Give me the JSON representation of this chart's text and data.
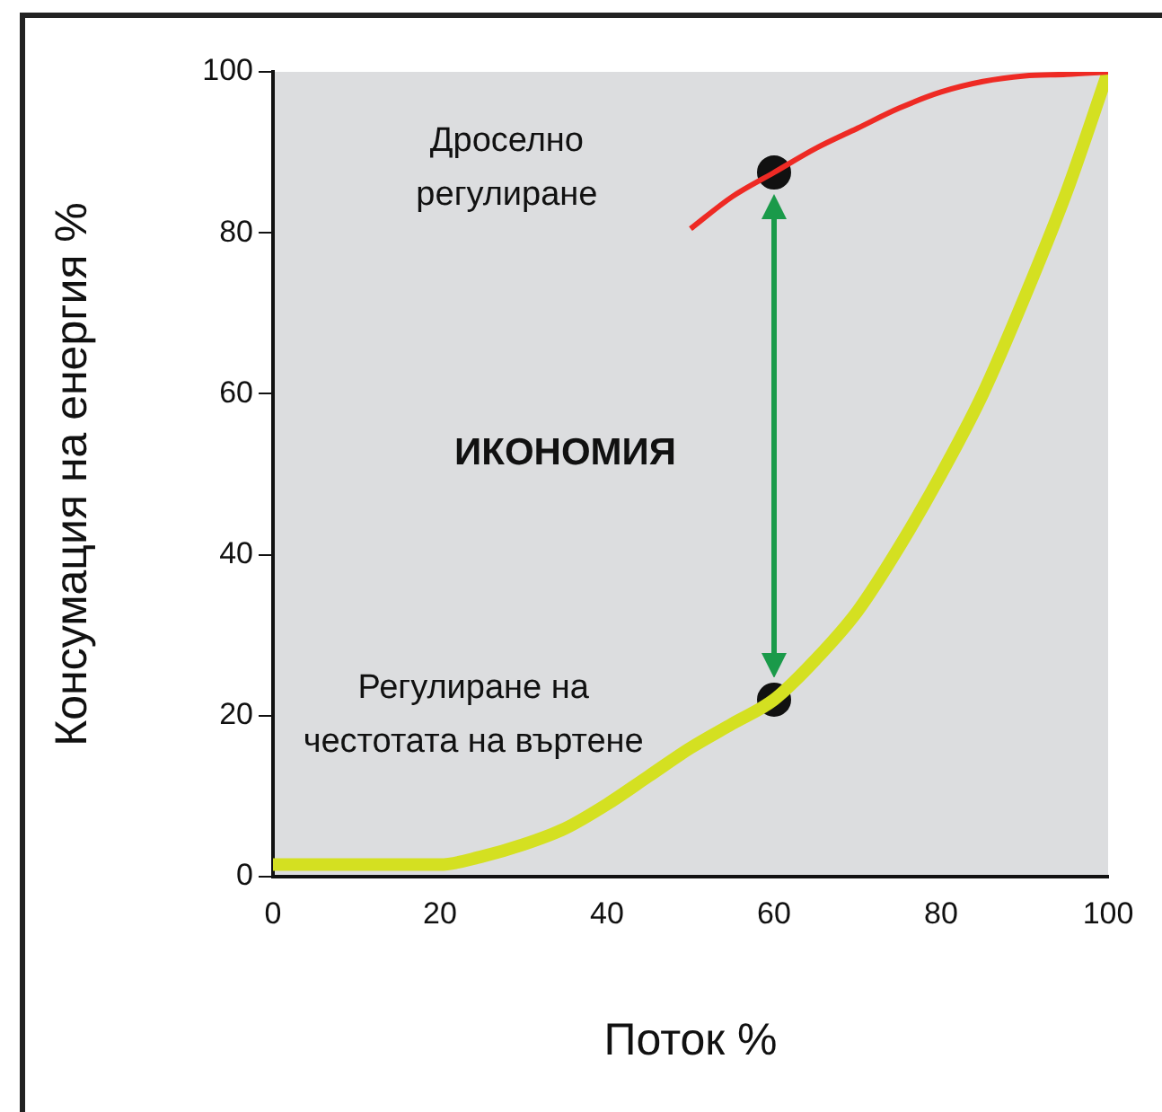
{
  "chart_data": {
    "type": "line",
    "xlabel": "Поток %",
    "ylabel": "Консумация на енергия %",
    "xlim": [
      0,
      100
    ],
    "xticks": [
      0,
      20,
      40,
      60,
      80,
      100
    ],
    "ylim": [
      0,
      100
    ],
    "yticks": [
      0,
      20,
      40,
      60,
      80,
      100
    ],
    "grid": false,
    "legend": false,
    "line_style": "solid",
    "annotations": [
      "ИКОНОМИЯ"
    ],
    "series": [
      {
        "name": "Дроселно регулиране",
        "color": "#ee2a24",
        "marker": "none",
        "x": [
          50,
          55,
          60,
          65,
          70,
          75,
          80,
          85,
          90,
          95,
          100
        ],
        "values": [
          80.5,
          84.5,
          87.5,
          90.5,
          93,
          95.5,
          97.5,
          98.8,
          99.5,
          99.7,
          100
        ]
      },
      {
        "name": "Регулиране на честотата на въртене",
        "color": "#d4e021",
        "marker": "none",
        "x": [
          0,
          10,
          20,
          25,
          30,
          35,
          40,
          45,
          50,
          55,
          60,
          65,
          70,
          75,
          80,
          85,
          90,
          95,
          100
        ],
        "values": [
          1.5,
          1.5,
          1.5,
          2.5,
          4,
          6,
          9,
          12.5,
          16,
          19,
          22,
          27,
          33,
          41,
          50,
          60,
          72,
          85,
          100
        ]
      },
      {
        "type": "scatter",
        "color": "#111111",
        "marker": "circle",
        "x": [
          60,
          60
        ],
        "values": [
          87.5,
          22
        ]
      }
    ]
  }
}
